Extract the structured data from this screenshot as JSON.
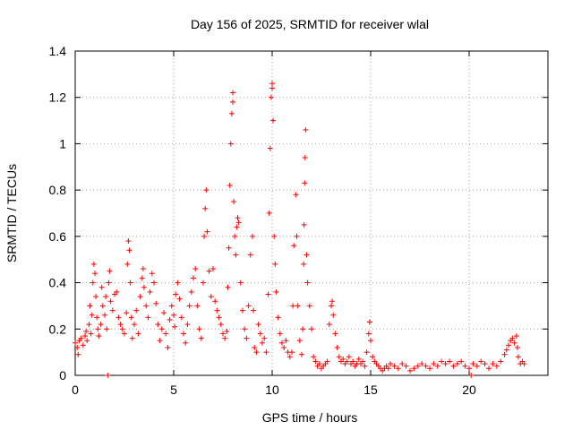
{
  "chart_data": {
    "type": "scatter",
    "title": "Day 156 of 2025, SRMTID for receiver wlal",
    "xlabel": "GPS time / hours",
    "ylabel": "SRMTID / TECUs",
    "xlim": [
      0,
      24
    ],
    "ylim": [
      0,
      1.4
    ],
    "xticks": [
      0,
      5,
      10,
      15,
      20
    ],
    "xtick_labels": [
      "0",
      "5",
      "10",
      "15",
      "20"
    ],
    "yticks": [
      0,
      0.2,
      0.4,
      0.6,
      0.8,
      1.0,
      1.2,
      1.4
    ],
    "ytick_labels": [
      "0",
      "0.2",
      "0.4",
      "0.6",
      "0.8",
      "1",
      "1.2",
      "1.4"
    ],
    "grid": true,
    "marker": "+",
    "marker_color": "#ff0000",
    "series": [
      {
        "name": "SRMTID",
        "points": [
          [
            0.0,
            0.14
          ],
          [
            0.1,
            0.12
          ],
          [
            0.15,
            0.09
          ],
          [
            0.2,
            0.15
          ],
          [
            0.3,
            0.16
          ],
          [
            0.4,
            0.13
          ],
          [
            0.5,
            0.17
          ],
          [
            0.55,
            0.19
          ],
          [
            0.6,
            0.15
          ],
          [
            0.7,
            0.22
          ],
          [
            0.75,
            0.3
          ],
          [
            0.8,
            0.18
          ],
          [
            0.85,
            0.26
          ],
          [
            0.9,
            0.4
          ],
          [
            0.95,
            0.48
          ],
          [
            1.0,
            0.44
          ],
          [
            1.05,
            0.34
          ],
          [
            1.1,
            0.25
          ],
          [
            1.15,
            0.2
          ],
          [
            1.2,
            0.17
          ],
          [
            1.3,
            0.22
          ],
          [
            1.35,
            0.38
          ],
          [
            1.4,
            0.3
          ],
          [
            1.5,
            0.26
          ],
          [
            1.55,
            0.34
          ],
          [
            1.6,
            0.2
          ],
          [
            1.65,
            0.0
          ],
          [
            1.7,
            0.4
          ],
          [
            1.75,
            0.45
          ],
          [
            1.8,
            0.32
          ],
          [
            1.9,
            0.28
          ],
          [
            2.0,
            0.35
          ],
          [
            2.1,
            0.36
          ],
          [
            2.2,
            0.25
          ],
          [
            2.3,
            0.22
          ],
          [
            2.4,
            0.2
          ],
          [
            2.5,
            0.18
          ],
          [
            2.6,
            0.27
          ],
          [
            2.65,
            0.48
          ],
          [
            2.7,
            0.58
          ],
          [
            2.75,
            0.54
          ],
          [
            2.8,
            0.4
          ],
          [
            2.85,
            0.25
          ],
          [
            2.9,
            0.16
          ],
          [
            3.0,
            0.22
          ],
          [
            3.1,
            0.28
          ],
          [
            3.2,
            0.18
          ],
          [
            3.3,
            0.34
          ],
          [
            3.4,
            0.42
          ],
          [
            3.45,
            0.46
          ],
          [
            3.5,
            0.38
          ],
          [
            3.6,
            0.3
          ],
          [
            3.7,
            0.25
          ],
          [
            3.8,
            0.36
          ],
          [
            3.9,
            0.44
          ],
          [
            4.0,
            0.4
          ],
          [
            4.1,
            0.31
          ],
          [
            4.2,
            0.22
          ],
          [
            4.3,
            0.15
          ],
          [
            4.4,
            0.2
          ],
          [
            4.5,
            0.27
          ],
          [
            4.6,
            0.18
          ],
          [
            4.7,
            0.12
          ],
          [
            4.8,
            0.24
          ],
          [
            4.9,
            0.3
          ],
          [
            5.0,
            0.26
          ],
          [
            5.05,
            0.21
          ],
          [
            5.1,
            0.35
          ],
          [
            5.2,
            0.4
          ],
          [
            5.3,
            0.33
          ],
          [
            5.4,
            0.25
          ],
          [
            5.5,
            0.18
          ],
          [
            5.6,
            0.14
          ],
          [
            5.7,
            0.22
          ],
          [
            5.8,
            0.3
          ],
          [
            5.9,
            0.36
          ],
          [
            6.0,
            0.42
          ],
          [
            6.1,
            0.46
          ],
          [
            6.2,
            0.3
          ],
          [
            6.3,
            0.2
          ],
          [
            6.4,
            0.16
          ],
          [
            6.5,
            0.4
          ],
          [
            6.55,
            0.6
          ],
          [
            6.6,
            0.72
          ],
          [
            6.65,
            0.8
          ],
          [
            6.7,
            0.62
          ],
          [
            6.8,
            0.45
          ],
          [
            6.9,
            0.34
          ],
          [
            7.0,
            0.46
          ],
          [
            7.1,
            0.32
          ],
          [
            7.2,
            0.28
          ],
          [
            7.3,
            0.25
          ],
          [
            7.4,
            0.22
          ],
          [
            7.5,
            0.18
          ],
          [
            7.6,
            0.16
          ],
          [
            7.7,
            0.19
          ],
          [
            7.75,
            0.38
          ],
          [
            7.8,
            0.55
          ],
          [
            7.85,
            0.82
          ],
          [
            7.9,
            1.0
          ],
          [
            7.95,
            1.13
          ],
          [
            8.0,
            1.22
          ],
          [
            8.0,
            1.18
          ],
          [
            8.05,
            0.75
          ],
          [
            8.1,
            0.6
          ],
          [
            8.15,
            0.52
          ],
          [
            8.2,
            0.64
          ],
          [
            8.25,
            0.68
          ],
          [
            8.3,
            0.66
          ],
          [
            8.4,
            0.4
          ],
          [
            8.5,
            0.28
          ],
          [
            8.6,
            0.2
          ],
          [
            8.7,
            0.16
          ],
          [
            8.8,
            0.3
          ],
          [
            8.9,
            0.52
          ],
          [
            9.0,
            0.6
          ],
          [
            9.05,
            0.28
          ],
          [
            9.1,
            0.12
          ],
          [
            9.2,
            0.1
          ],
          [
            9.3,
            0.22
          ],
          [
            9.4,
            0.18
          ],
          [
            9.5,
            0.14
          ],
          [
            9.6,
            0.16
          ],
          [
            9.7,
            0.1
          ],
          [
            9.8,
            0.35
          ],
          [
            9.85,
            0.7
          ],
          [
            9.9,
            0.98
          ],
          [
            9.95,
            1.2
          ],
          [
            10.0,
            1.26
          ],
          [
            10.0,
            1.24
          ],
          [
            10.05,
            1.1
          ],
          [
            10.1,
            0.6
          ],
          [
            10.15,
            0.48
          ],
          [
            10.2,
            0.36
          ],
          [
            10.3,
            0.25
          ],
          [
            10.4,
            0.18
          ],
          [
            10.5,
            0.14
          ],
          [
            10.6,
            0.12
          ],
          [
            10.7,
            0.15
          ],
          [
            10.8,
            0.1
          ],
          [
            10.9,
            0.08
          ],
          [
            11.0,
            0.1
          ],
          [
            11.05,
            0.3
          ],
          [
            11.1,
            0.56
          ],
          [
            11.2,
            0.78
          ],
          [
            11.25,
            0.6
          ],
          [
            11.3,
            0.3
          ],
          [
            11.4,
            0.15
          ],
          [
            11.5,
            0.09
          ],
          [
            11.55,
            0.2
          ],
          [
            11.6,
            0.48
          ],
          [
            11.62,
            0.65
          ],
          [
            11.65,
            0.83
          ],
          [
            11.67,
            0.94
          ],
          [
            11.7,
            1.06
          ],
          [
            11.75,
            0.52
          ],
          [
            11.8,
            0.4
          ],
          [
            11.9,
            0.3
          ],
          [
            12.0,
            0.2
          ],
          [
            12.1,
            0.08
          ],
          [
            12.2,
            0.06
          ],
          [
            12.3,
            0.04
          ],
          [
            12.4,
            0.05
          ],
          [
            12.5,
            0.03
          ],
          [
            12.6,
            0.04
          ],
          [
            12.7,
            0.05
          ],
          [
            12.8,
            0.06
          ],
          [
            12.9,
            0.22
          ],
          [
            13.0,
            0.3
          ],
          [
            13.05,
            0.32
          ],
          [
            13.1,
            0.26
          ],
          [
            13.2,
            0.18
          ],
          [
            13.3,
            0.12
          ],
          [
            13.4,
            0.08
          ],
          [
            13.5,
            0.06
          ],
          [
            13.6,
            0.07
          ],
          [
            13.7,
            0.05
          ],
          [
            13.8,
            0.06
          ],
          [
            13.9,
            0.08
          ],
          [
            14.0,
            0.05
          ],
          [
            14.1,
            0.06
          ],
          [
            14.2,
            0.04
          ],
          [
            14.3,
            0.05
          ],
          [
            14.4,
            0.07
          ],
          [
            14.5,
            0.05
          ],
          [
            14.6,
            0.06
          ],
          [
            14.7,
            0.04
          ],
          [
            14.8,
            0.1
          ],
          [
            14.9,
            0.18
          ],
          [
            14.95,
            0.23
          ],
          [
            15.0,
            0.15
          ],
          [
            15.1,
            0.08
          ],
          [
            15.2,
            0.06
          ],
          [
            15.3,
            0.05
          ],
          [
            15.4,
            0.04
          ],
          [
            15.5,
            0.03
          ],
          [
            15.6,
            0.02
          ],
          [
            15.7,
            0.03
          ],
          [
            15.8,
            0.04
          ],
          [
            15.9,
            0.03
          ],
          [
            16.0,
            0.05
          ],
          [
            16.2,
            0.04
          ],
          [
            16.4,
            0.03
          ],
          [
            16.6,
            0.05
          ],
          [
            16.8,
            0.04
          ],
          [
            17.0,
            0.02
          ],
          [
            17.2,
            0.03
          ],
          [
            17.4,
            0.04
          ],
          [
            17.6,
            0.05
          ],
          [
            17.8,
            0.04
          ],
          [
            18.0,
            0.03
          ],
          [
            18.2,
            0.05
          ],
          [
            18.4,
            0.04
          ],
          [
            18.6,
            0.06
          ],
          [
            18.8,
            0.05
          ],
          [
            19.0,
            0.06
          ],
          [
            19.2,
            0.04
          ],
          [
            19.4,
            0.05
          ],
          [
            19.6,
            0.06
          ],
          [
            19.8,
            0.04
          ],
          [
            20.0,
            0.03
          ],
          [
            20.1,
            0.0
          ],
          [
            20.2,
            0.05
          ],
          [
            20.4,
            0.04
          ],
          [
            20.6,
            0.06
          ],
          [
            20.8,
            0.05
          ],
          [
            21.0,
            0.03
          ],
          [
            21.2,
            0.05
          ],
          [
            21.4,
            0.04
          ],
          [
            21.6,
            0.06
          ],
          [
            21.8,
            0.09
          ],
          [
            21.9,
            0.11
          ],
          [
            22.0,
            0.13
          ],
          [
            22.1,
            0.15
          ],
          [
            22.2,
            0.16
          ],
          [
            22.3,
            0.14
          ],
          [
            22.4,
            0.17
          ],
          [
            22.45,
            0.12
          ],
          [
            22.5,
            0.08
          ],
          [
            22.6,
            0.05
          ],
          [
            22.7,
            0.06
          ],
          [
            22.8,
            0.05
          ]
        ]
      }
    ]
  }
}
